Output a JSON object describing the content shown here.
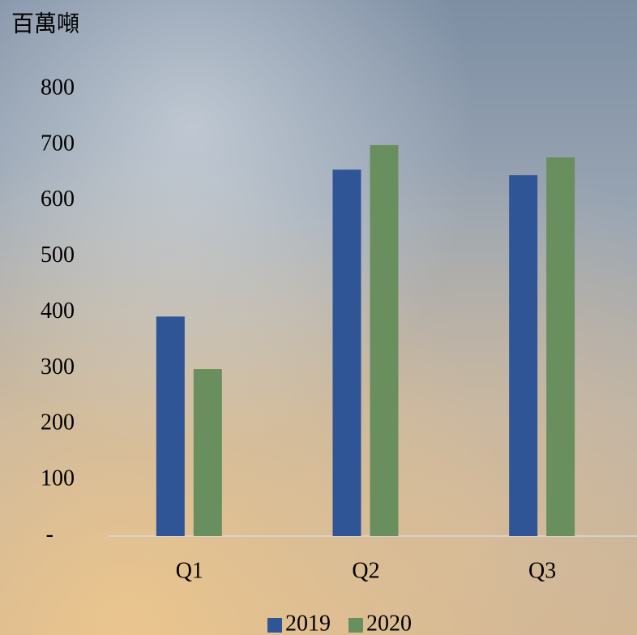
{
  "chart_data": {
    "type": "bar",
    "y_label": "百萬噸",
    "categories": [
      "Q1",
      "Q2",
      "Q3"
    ],
    "series": [
      {
        "name": "2019",
        "color": "#2f5597",
        "values": [
          393,
          656,
          646
        ]
      },
      {
        "name": "2020",
        "color": "#6a8f5f",
        "values": [
          299,
          700,
          678
        ]
      }
    ],
    "ylim": [
      0,
      800
    ],
    "yticks": [
      {
        "value": 0,
        "label": "-"
      },
      100,
      200,
      300,
      400,
      500,
      600,
      700,
      800
    ],
    "grid": false
  }
}
